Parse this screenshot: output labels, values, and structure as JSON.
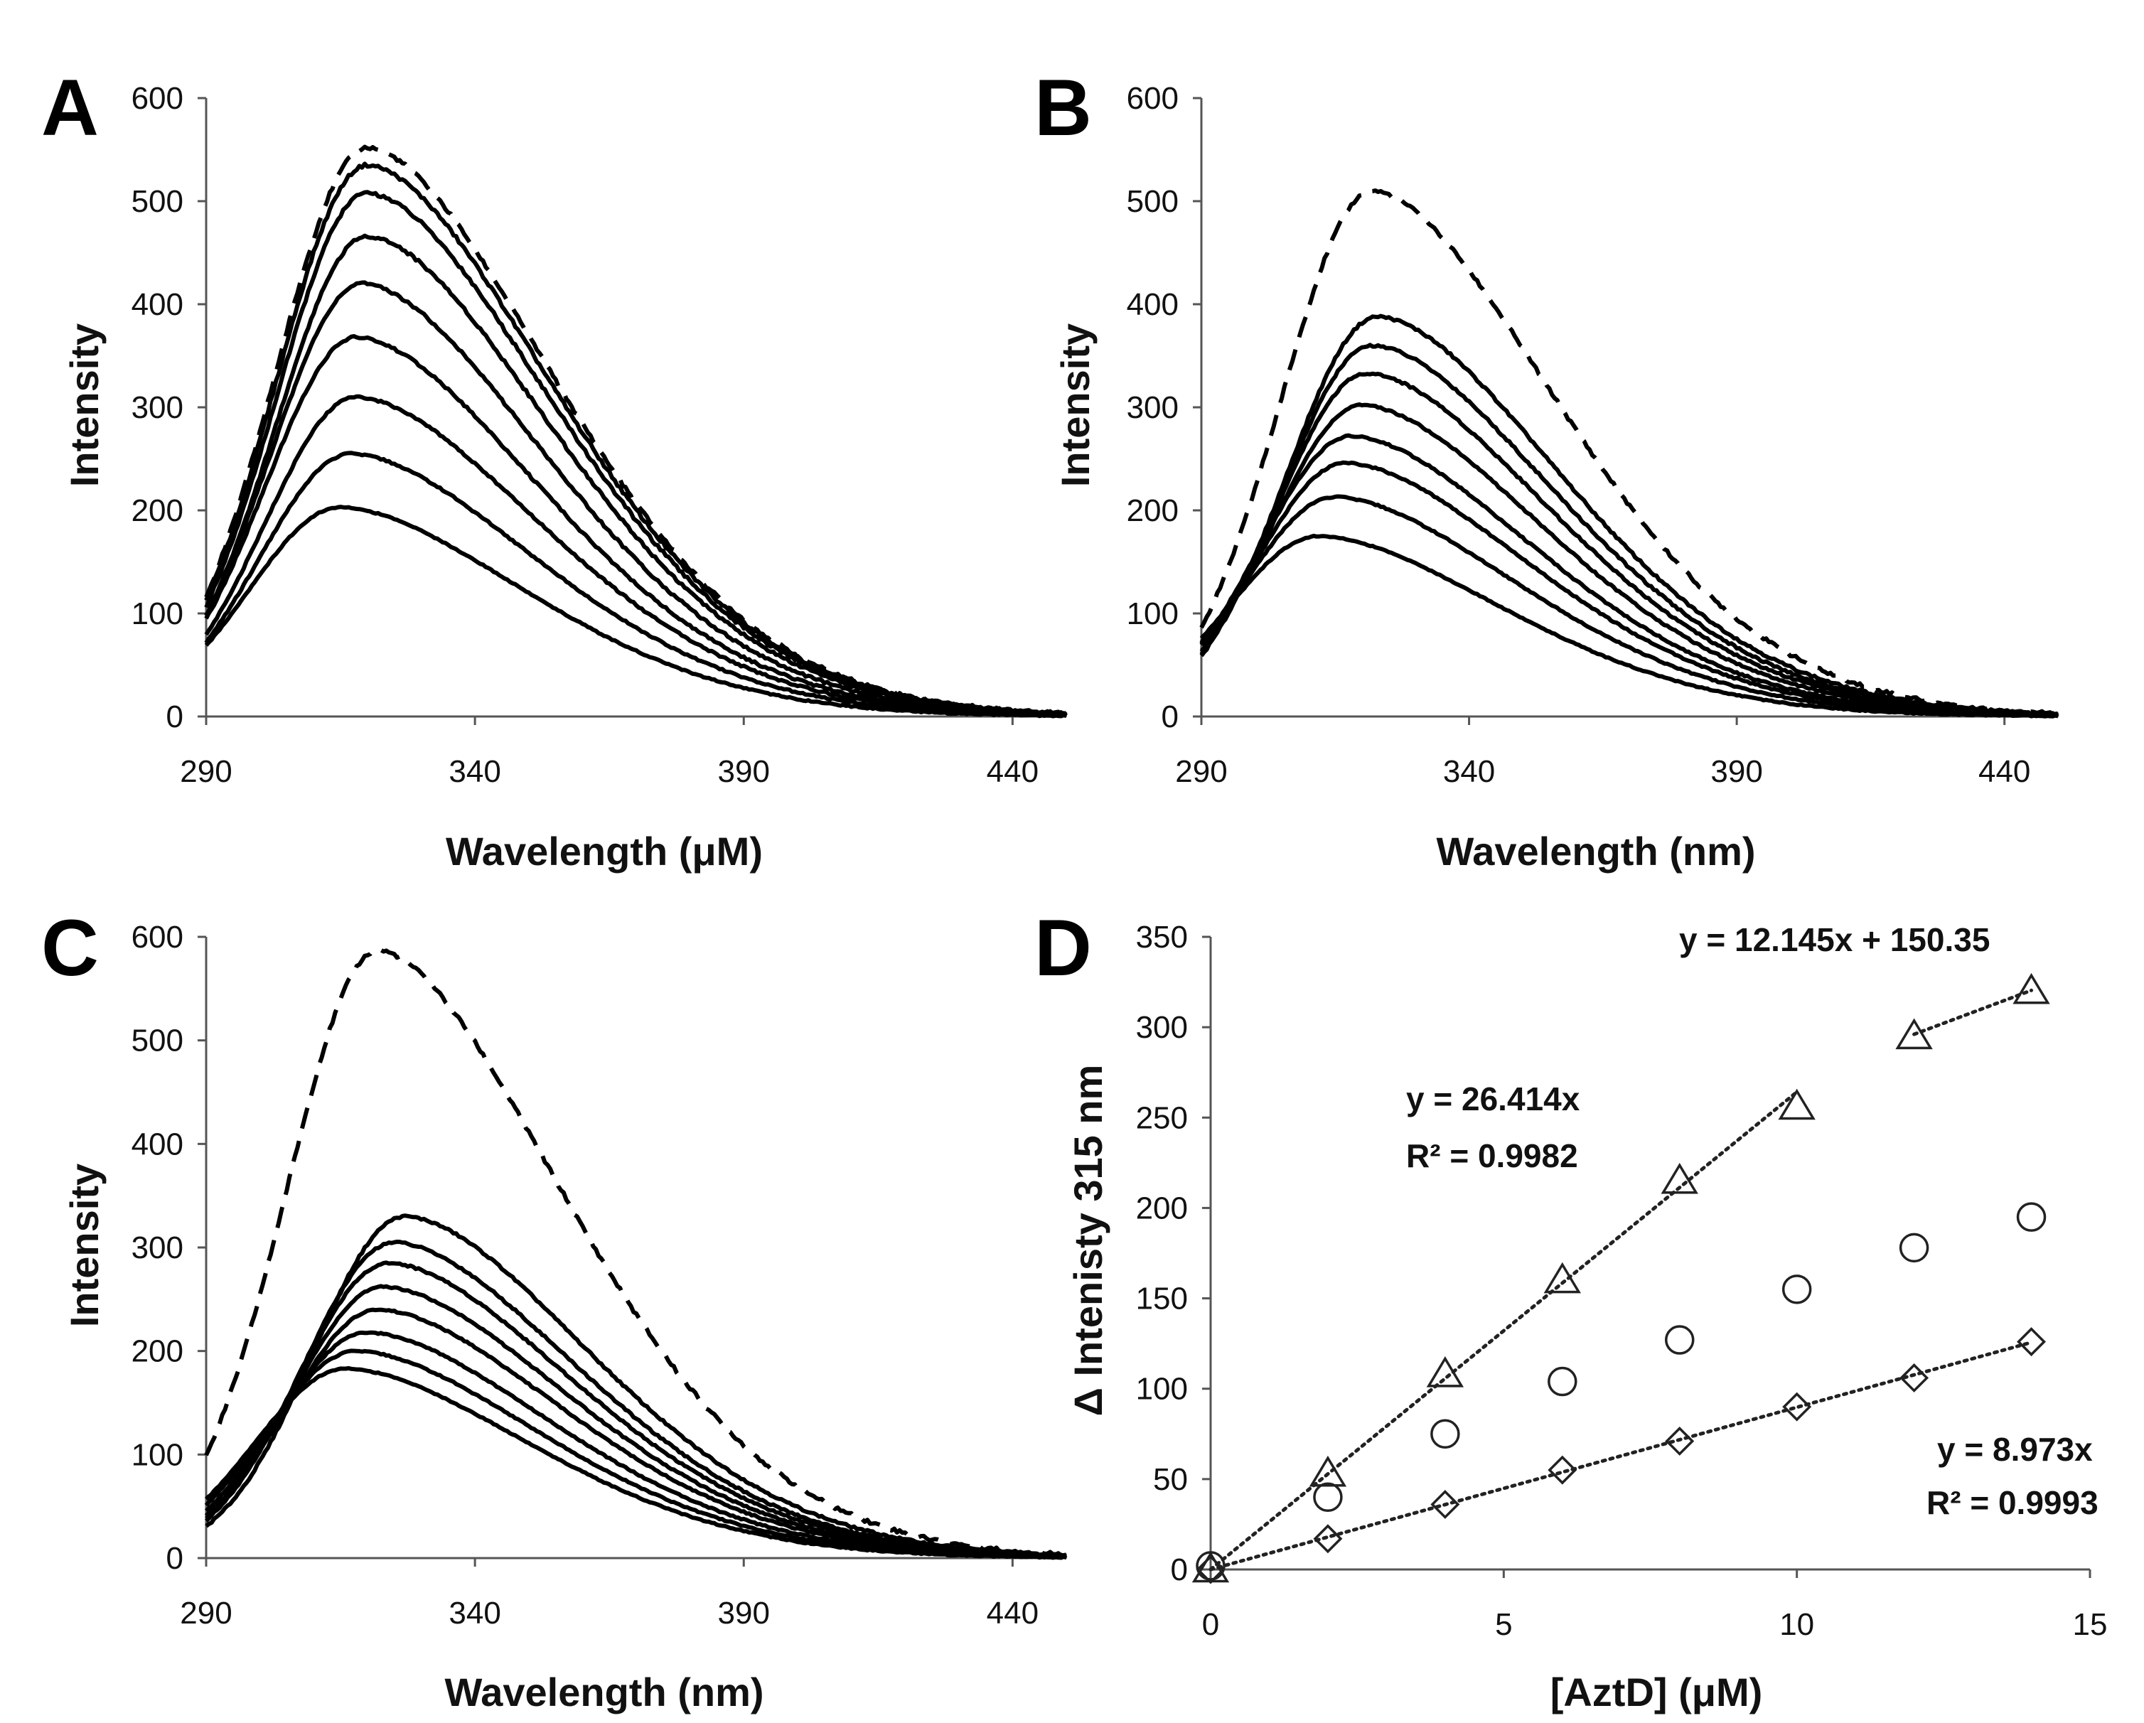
{
  "chart_data": [
    {
      "panel": "A",
      "type": "line",
      "xlabel": "Wavelength (μM)",
      "ylabel": "Intensity",
      "xlim": [
        290,
        450
      ],
      "ylim": [
        0,
        600
      ],
      "xticks": [
        290,
        340,
        390,
        440
      ],
      "yticks": [
        0,
        100,
        200,
        300,
        400,
        500,
        600
      ],
      "series": [
        {
          "name": "dashed",
          "style": "dashed",
          "peak": 552,
          "peak_x": 320
        },
        {
          "name": "s1",
          "style": "solid",
          "peak": 535,
          "peak_x": 320
        },
        {
          "name": "s2",
          "style": "solid",
          "peak": 508,
          "peak_x": 320
        },
        {
          "name": "s3",
          "style": "solid",
          "peak": 466,
          "peak_x": 320
        },
        {
          "name": "s4",
          "style": "solid",
          "peak": 420,
          "peak_x": 319
        },
        {
          "name": "s5",
          "style": "solid",
          "peak": 368,
          "peak_x": 318
        },
        {
          "name": "s6",
          "style": "solid",
          "peak": 310,
          "peak_x": 318
        },
        {
          "name": "s7",
          "style": "solid",
          "peak": 255,
          "peak_x": 317
        },
        {
          "name": "s8",
          "style": "solid",
          "peak": 203,
          "peak_x": 315
        }
      ]
    },
    {
      "panel": "B",
      "type": "line",
      "xlabel": "Wavelength (nm)",
      "ylabel": "Intensity",
      "xlim": [
        290,
        450
      ],
      "ylim": [
        0,
        600
      ],
      "xticks": [
        290,
        340,
        390,
        440
      ],
      "yticks": [
        0,
        100,
        200,
        300,
        400,
        500,
        600
      ],
      "series": [
        {
          "name": "dashed",
          "style": "dashed",
          "peak": 510,
          "peak_x": 322
        },
        {
          "name": "s1",
          "style": "solid",
          "peak": 388,
          "peak_x": 323
        },
        {
          "name": "s2",
          "style": "solid",
          "peak": 360,
          "peak_x": 322
        },
        {
          "name": "s3",
          "style": "solid",
          "peak": 333,
          "peak_x": 321
        },
        {
          "name": "s4",
          "style": "solid",
          "peak": 302,
          "peak_x": 320
        },
        {
          "name": "s5",
          "style": "solid",
          "peak": 272,
          "peak_x": 318
        },
        {
          "name": "s6",
          "style": "solid",
          "peak": 246,
          "peak_x": 317
        },
        {
          "name": "s7",
          "style": "solid",
          "peak": 213,
          "peak_x": 315
        },
        {
          "name": "s8",
          "style": "solid",
          "peak": 175,
          "peak_x": 312
        }
      ]
    },
    {
      "panel": "C",
      "type": "line",
      "xlabel": "Wavelength (nm)",
      "ylabel": "Intensity",
      "xlim": [
        290,
        450
      ],
      "ylim": [
        0,
        600
      ],
      "xticks": [
        290,
        340,
        390,
        440
      ],
      "yticks": [
        0,
        100,
        200,
        300,
        400,
        500,
        600
      ],
      "series": [
        {
          "name": "dashed",
          "style": "dashed",
          "peak": 587,
          "peak_x": 322
        },
        {
          "name": "s1",
          "style": "solid",
          "peak": 330,
          "peak_x": 327
        },
        {
          "name": "s2",
          "style": "solid",
          "peak": 305,
          "peak_x": 325
        },
        {
          "name": "s3",
          "style": "solid",
          "peak": 285,
          "peak_x": 324
        },
        {
          "name": "s4",
          "style": "solid",
          "peak": 262,
          "peak_x": 323
        },
        {
          "name": "s5",
          "style": "solid",
          "peak": 240,
          "peak_x": 322
        },
        {
          "name": "s6",
          "style": "solid",
          "peak": 218,
          "peak_x": 320
        },
        {
          "name": "s7",
          "style": "solid",
          "peak": 200,
          "peak_x": 318
        },
        {
          "name": "s8",
          "style": "solid",
          "peak": 183,
          "peak_x": 316
        }
      ]
    },
    {
      "panel": "D",
      "type": "scatter",
      "xlabel": "[AztD] (μM)",
      "ylabel": "Δ Intenisty 315 nm",
      "xlim": [
        0,
        15
      ],
      "ylim": [
        0,
        350
      ],
      "xticks": [
        0,
        5,
        10,
        15
      ],
      "yticks": [
        0,
        50,
        100,
        150,
        200,
        250,
        300,
        350
      ],
      "series": [
        {
          "name": "triangles",
          "marker": "triangle",
          "x": [
            0,
            2,
            4,
            6,
            8,
            10,
            12,
            14
          ],
          "y": [
            0,
            53,
            108,
            160,
            215,
            256,
            295,
            320
          ]
        },
        {
          "name": "circles",
          "marker": "circle",
          "x": [
            0,
            2,
            4,
            6,
            8,
            10,
            12,
            14
          ],
          "y": [
            2,
            40,
            75,
            104,
            127,
            155,
            178,
            195
          ]
        },
        {
          "name": "diamonds",
          "marker": "diamond",
          "x": [
            0,
            2,
            4,
            6,
            8,
            10,
            12,
            14
          ],
          "y": [
            0,
            17,
            36,
            55,
            71,
            90,
            106,
            126
          ]
        }
      ],
      "fits": [
        {
          "slope": 26.414,
          "intercept": 0,
          "x_range": [
            0,
            10
          ]
        },
        {
          "slope": 12.145,
          "intercept": 150.35,
          "x_range": [
            12,
            14
          ]
        },
        {
          "slope": 8.973,
          "intercept": 0,
          "x_range": [
            0,
            14
          ]
        }
      ],
      "annotations": {
        "eq_top": "y = 12.145x + 150.35",
        "eq_mid": "y = 26.414x",
        "r2_mid": "R² = 0.9982",
        "eq_low": "y = 8.973x",
        "r2_low": "R² = 0.9993"
      }
    }
  ]
}
